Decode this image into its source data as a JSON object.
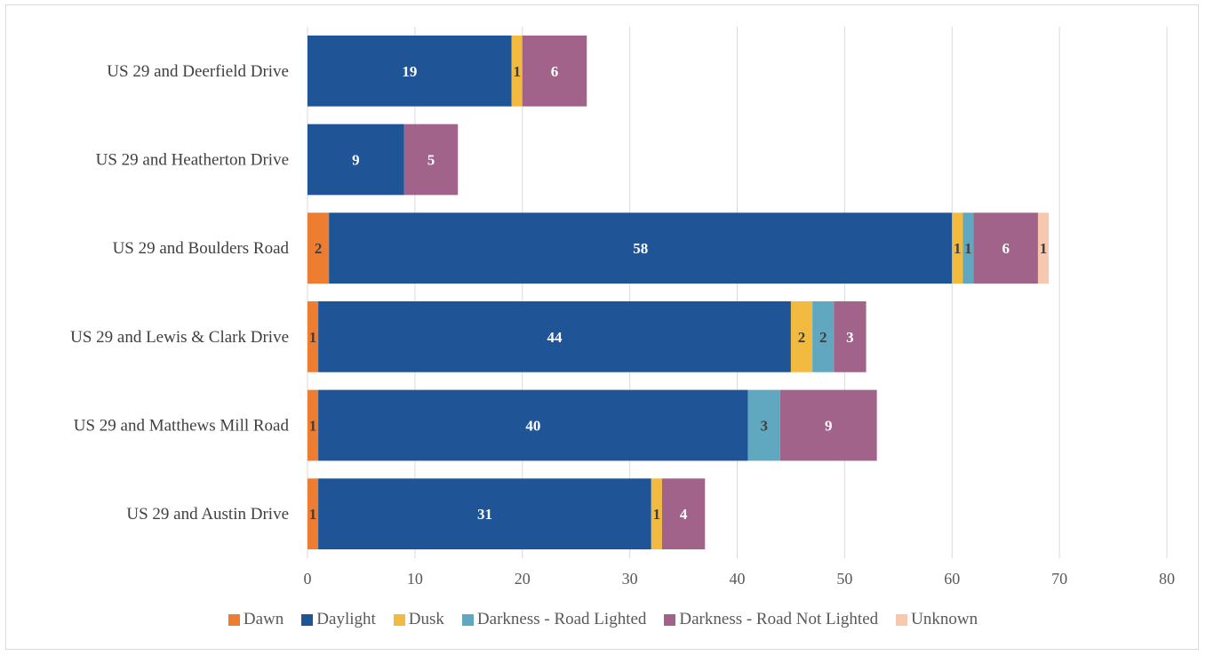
{
  "chart_data": {
    "type": "bar",
    "orientation": "horizontal",
    "stacked": true,
    "categories": [
      "US 29 and Deerfield Drive",
      "US 29 and Heatherton Drive",
      "US 29 and Boulders Road",
      "US 29 and Lewis & Clark Drive",
      "US 29 and Matthews Mill Road",
      "US 29 and Austin Drive"
    ],
    "series": [
      {
        "name": "Dawn",
        "color": "#ED7D31",
        "label_color": "#404040",
        "values": [
          0,
          0,
          2,
          1,
          1,
          1
        ]
      },
      {
        "name": "Daylight",
        "color": "#1F5597",
        "label_color": "#ffffff",
        "values": [
          19,
          9,
          58,
          44,
          40,
          31
        ]
      },
      {
        "name": "Dusk",
        "color": "#F2BA3F",
        "label_color": "#404040",
        "values": [
          1,
          0,
          1,
          2,
          0,
          1
        ]
      },
      {
        "name": "Darkness - Road Lighted",
        "color": "#5FA8C0",
        "label_color": "#404040",
        "values": [
          0,
          0,
          1,
          2,
          3,
          0
        ]
      },
      {
        "name": "Darkness - Road Not Lighted",
        "color": "#A16389",
        "label_color": "#ffffff",
        "values": [
          6,
          5,
          6,
          3,
          9,
          4
        ]
      },
      {
        "name": "Unknown",
        "color": "#F8C8AE",
        "label_color": "#404040",
        "values": [
          0,
          0,
          1,
          0,
          0,
          0
        ]
      }
    ],
    "xlim": [
      0,
      80
    ],
    "xticks": [
      0,
      10,
      20,
      30,
      40,
      50,
      60,
      70,
      80
    ],
    "grid": "vertical",
    "legend_position": "bottom",
    "title": "",
    "xlabel": "",
    "ylabel": ""
  }
}
